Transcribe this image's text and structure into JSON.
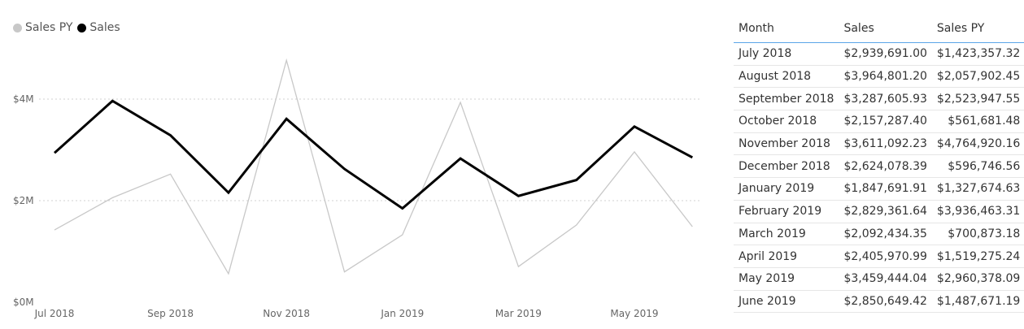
{
  "legend": [
    {
      "label": "Sales PY",
      "color": "#c8c8c8"
    },
    {
      "label": "Sales",
      "color": "#000000"
    }
  ],
  "table": {
    "headers": [
      "Month",
      "Sales",
      "Sales PY"
    ],
    "rows": [
      [
        "July 2018",
        "$2,939,691.00",
        "$1,423,357.32"
      ],
      [
        "August 2018",
        "$3,964,801.20",
        "$2,057,902.45"
      ],
      [
        "September 2018",
        "$3,287,605.93",
        "$2,523,947.55"
      ],
      [
        "October 2018",
        "$2,157,287.40",
        "$561,681.48"
      ],
      [
        "November 2018",
        "$3,611,092.23",
        "$4,764,920.16"
      ],
      [
        "December 2018",
        "$2,624,078.39",
        "$596,746.56"
      ],
      [
        "January 2019",
        "$1,847,691.91",
        "$1,327,674.63"
      ],
      [
        "February 2019",
        "$2,829,361.64",
        "$3,936,463.31"
      ],
      [
        "March 2019",
        "$2,092,434.35",
        "$700,873.18"
      ],
      [
        "April 2019",
        "$2,405,970.99",
        "$1,519,275.24"
      ],
      [
        "May 2019",
        "$3,459,444.04",
        "$2,960,378.09"
      ],
      [
        "June 2019",
        "$2,850,649.42",
        "$1,487,671.19"
      ]
    ]
  },
  "chart_data": {
    "type": "line",
    "x": [
      "Jul 2018",
      "Aug 2018",
      "Sep 2018",
      "Oct 2018",
      "Nov 2018",
      "Dec 2018",
      "Jan 2019",
      "Feb 2019",
      "Mar 2019",
      "Apr 2019",
      "May 2019",
      "Jun 2019"
    ],
    "x_tick_labels": [
      "Jul 2018",
      "",
      "Sep 2018",
      "",
      "Nov 2018",
      "",
      "Jan 2019",
      "",
      "Mar 2019",
      "",
      "May 2019",
      ""
    ],
    "y_ticks": [
      {
        "value": 0,
        "label": "$0M"
      },
      {
        "value": 2000000,
        "label": "$2M"
      },
      {
        "value": 4000000,
        "label": "$4M"
      }
    ],
    "ylim": [
      0,
      6000000
    ],
    "grid": true,
    "legend_position": "top-left",
    "series": [
      {
        "name": "Sales PY",
        "color": "#c8c8c8",
        "values": [
          1423357.32,
          2057902.45,
          2523947.55,
          561681.48,
          4764920.16,
          596746.56,
          1327674.63,
          3936463.31,
          700873.18,
          1519275.24,
          2960378.09,
          1487671.19
        ]
      },
      {
        "name": "Sales",
        "color": "#000000",
        "values": [
          2939691.0,
          3964801.2,
          3287605.93,
          2157287.4,
          3611092.23,
          2624078.39,
          1847691.91,
          2829361.64,
          2092434.35,
          2405970.99,
          3459444.04,
          2850649.42
        ]
      }
    ]
  }
}
